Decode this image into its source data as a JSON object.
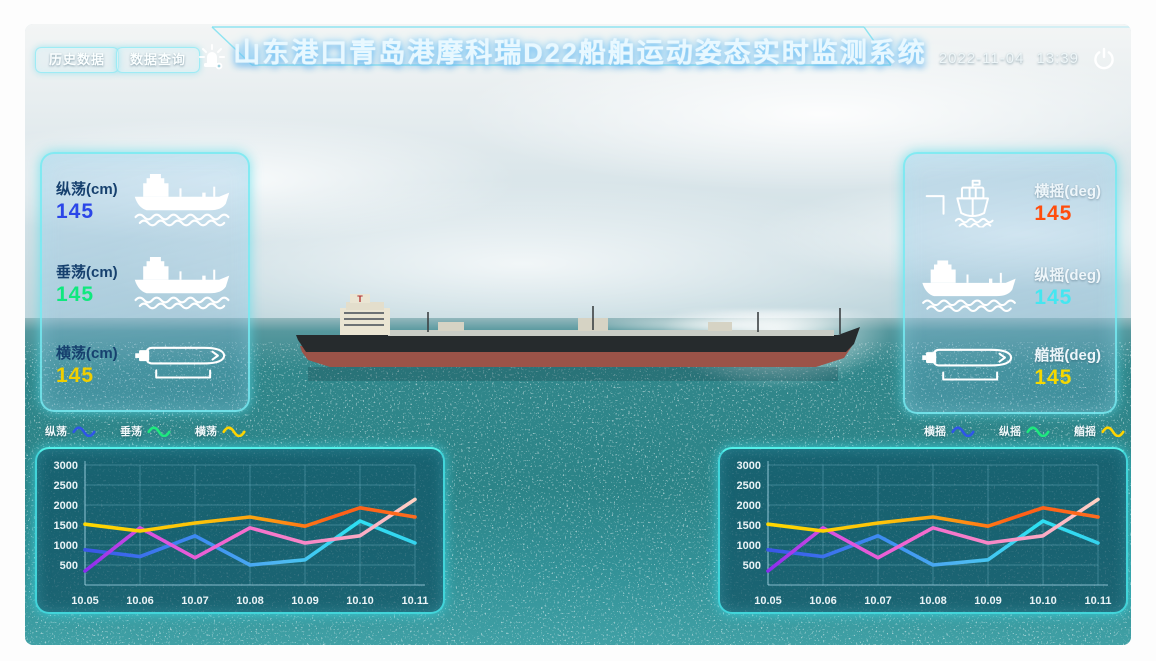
{
  "header": {
    "buttons": [
      {
        "label": "历史数据"
      },
      {
        "label": "数据查询"
      }
    ],
    "alarm_icon": "siren-icon",
    "title": "山东港口青岛港摩科瑞D22船舶运动姿态实时监测系统",
    "datetime": {
      "date": "2022-11-04",
      "time": "13:39"
    },
    "power_icon": "power-icon",
    "accent_color": "#7fe0f0"
  },
  "left_panel": {
    "metrics": [
      {
        "label": "纵荡(cm)",
        "value": "145",
        "value_color": "#2b46e8",
        "icon": "#sym-ship-side",
        "icon_name": "ship-side-icon"
      },
      {
        "label": "垂荡(cm)",
        "value": "145",
        "value_color": "#0fe87e",
        "icon": "#sym-ship-side",
        "icon_name": "ship-side-icon"
      },
      {
        "label": "横荡(cm)",
        "value": "145",
        "value_color": "#f0cf00",
        "icon": "#sym-ship-top",
        "icon_name": "ship-top-icon"
      }
    ]
  },
  "right_panel": {
    "metrics": [
      {
        "label": "横摇(deg)",
        "value": "145",
        "value_color": "#ff4d0d",
        "icon": "#sym-ship-front",
        "icon_name": "ship-front-icon"
      },
      {
        "label": "纵摇(deg)",
        "value": "145",
        "value_color": "#45e6f0",
        "icon": "#sym-ship-side",
        "icon_name": "ship-side-icon"
      },
      {
        "label": "艏摇(deg)",
        "value": "145",
        "value_color": "#f5d800",
        "icon": "#sym-ship-top",
        "icon_name": "ship-top-icon"
      }
    ]
  },
  "chart_data": [
    {
      "type": "line",
      "title": "",
      "xlabel": "",
      "ylabel": "",
      "categories": [
        "10.05",
        "10.06",
        "10.07",
        "10.08",
        "10.09",
        "10.10",
        "10.11"
      ],
      "series": [
        {
          "name": "纵荡",
          "values": [
            880,
            710,
            1230,
            500,
            630,
            1600,
            1050
          ]
        },
        {
          "name": "垂荡",
          "values": [
            350,
            1430,
            680,
            1430,
            1050,
            1230,
            2140
          ]
        },
        {
          "name": "横荡",
          "values": [
            1520,
            1350,
            1550,
            1700,
            1470,
            1930,
            1700
          ]
        }
      ],
      "legend": [
        {
          "label": "纵荡",
          "color": "#2f55e8"
        },
        {
          "label": "垂荡",
          "color": "#1ee87e"
        },
        {
          "label": "横荡",
          "color": "#ffd400"
        }
      ],
      "legend_position": "top-left",
      "grid": true,
      "ylim": [
        0,
        3000
      ],
      "yticks": [
        500,
        1000,
        1500,
        2000,
        2500,
        3000
      ],
      "line_gradients": [
        [
          {
            "offset": "0%",
            "color": "#3a55e8"
          },
          {
            "offset": "35%",
            "color": "#3d8df2"
          },
          {
            "offset": "60%",
            "color": "#4fb8f2"
          },
          {
            "offset": "80%",
            "color": "#2ee0f2"
          },
          {
            "offset": "100%",
            "color": "#35d4ee"
          }
        ],
        [
          {
            "offset": "0%",
            "color": "#8a2bf0"
          },
          {
            "offset": "18%",
            "color": "#d94fe0"
          },
          {
            "offset": "45%",
            "color": "#f468cf"
          },
          {
            "offset": "72%",
            "color": "#f78fc4"
          },
          {
            "offset": "100%",
            "color": "#ffd2c4"
          }
        ],
        [
          {
            "offset": "0%",
            "color": "#ffd800"
          },
          {
            "offset": "35%",
            "color": "#fec30a"
          },
          {
            "offset": "55%",
            "color": "#fd9a12"
          },
          {
            "offset": "75%",
            "color": "#ff5f17"
          },
          {
            "offset": "100%",
            "color": "#fd6c1e"
          }
        ]
      ]
    },
    {
      "type": "line",
      "title": "",
      "xlabel": "",
      "ylabel": "",
      "categories": [
        "10.05",
        "10.06",
        "10.07",
        "10.08",
        "10.09",
        "10.10",
        "10.11"
      ],
      "series": [
        {
          "name": "横摇",
          "values": [
            880,
            710,
            1230,
            500,
            630,
            1600,
            1050
          ]
        },
        {
          "name": "纵摇",
          "values": [
            350,
            1430,
            680,
            1430,
            1050,
            1230,
            2140
          ]
        },
        {
          "name": "艏摇",
          "values": [
            1520,
            1350,
            1550,
            1700,
            1470,
            1930,
            1700
          ]
        }
      ],
      "legend": [
        {
          "label": "横摇",
          "color": "#2f55e8"
        },
        {
          "label": "纵摇",
          "color": "#1ee87e"
        },
        {
          "label": "艏摇",
          "color": "#ffd400"
        }
      ],
      "legend_position": "top-right",
      "grid": true,
      "ylim": [
        0,
        3000
      ],
      "yticks": [
        500,
        1000,
        1500,
        2000,
        2500,
        3000
      ],
      "line_gradients": [
        [
          {
            "offset": "0%",
            "color": "#3a55e8"
          },
          {
            "offset": "35%",
            "color": "#3d8df2"
          },
          {
            "offset": "60%",
            "color": "#4fb8f2"
          },
          {
            "offset": "80%",
            "color": "#2ee0f2"
          },
          {
            "offset": "100%",
            "color": "#35d4ee"
          }
        ],
        [
          {
            "offset": "0%",
            "color": "#8a2bf0"
          },
          {
            "offset": "18%",
            "color": "#d94fe0"
          },
          {
            "offset": "45%",
            "color": "#f468cf"
          },
          {
            "offset": "72%",
            "color": "#f78fc4"
          },
          {
            "offset": "100%",
            "color": "#ffd2c4"
          }
        ],
        [
          {
            "offset": "0%",
            "color": "#ffd800"
          },
          {
            "offset": "35%",
            "color": "#fec30a"
          },
          {
            "offset": "55%",
            "color": "#fd9a12"
          },
          {
            "offset": "75%",
            "color": "#ff5f17"
          },
          {
            "offset": "100%",
            "color": "#fd6c1e"
          }
        ]
      ]
    }
  ]
}
